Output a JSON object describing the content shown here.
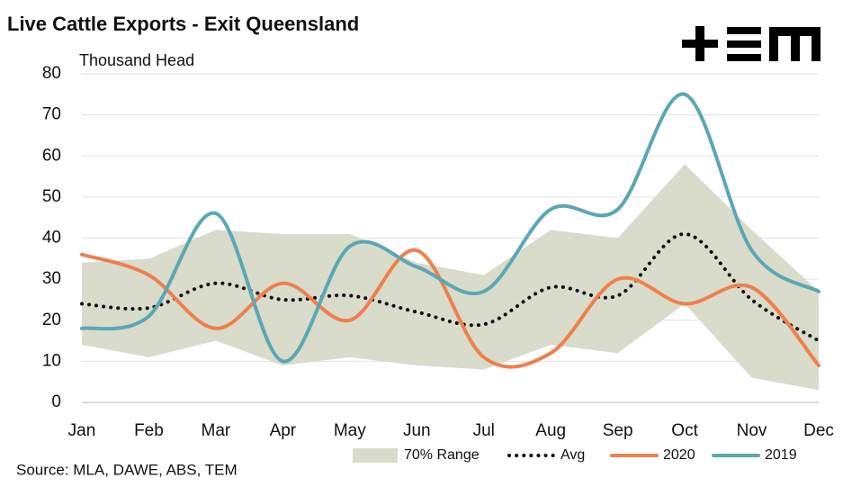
{
  "chart_data": {
    "type": "line",
    "title": "Live Cattle Exports - Exit Queensland",
    "subtitle": "Thousand Head",
    "source": "Source: MLA, DAWE, ABS, TEM",
    "categories": [
      "Jan",
      "Feb",
      "Mar",
      "Apr",
      "May",
      "Jun",
      "Jul",
      "Aug",
      "Sep",
      "Oct",
      "Nov",
      "Dec"
    ],
    "ylim": [
      0,
      80
    ],
    "yticks": [
      0,
      10,
      20,
      30,
      40,
      50,
      60,
      70,
      80
    ],
    "grid": true,
    "series": [
      {
        "name": "70% Range",
        "color": "#d9dccb",
        "style": "band",
        "low": [
          14,
          11,
          15,
          9,
          11,
          9,
          8,
          14,
          12,
          24,
          6,
          3
        ],
        "high": [
          34,
          35,
          42,
          41,
          41,
          34,
          31,
          42,
          40,
          58,
          42,
          27
        ]
      },
      {
        "name": "Avg",
        "color": "#111111",
        "style": "dotted",
        "values": [
          24,
          23,
          29,
          25,
          26,
          22,
          19,
          28,
          26,
          41,
          25,
          15
        ]
      },
      {
        "name": "2020",
        "color": "#f07f4e",
        "style": "solid",
        "values": [
          36,
          31,
          18,
          29,
          20,
          37,
          11,
          12,
          30,
          24,
          28,
          9
        ]
      },
      {
        "name": "2019",
        "color": "#5ca7b3",
        "style": "solid",
        "values": [
          18,
          21,
          46,
          10,
          38,
          33,
          27,
          47,
          47,
          75,
          37,
          27
        ]
      }
    ]
  }
}
